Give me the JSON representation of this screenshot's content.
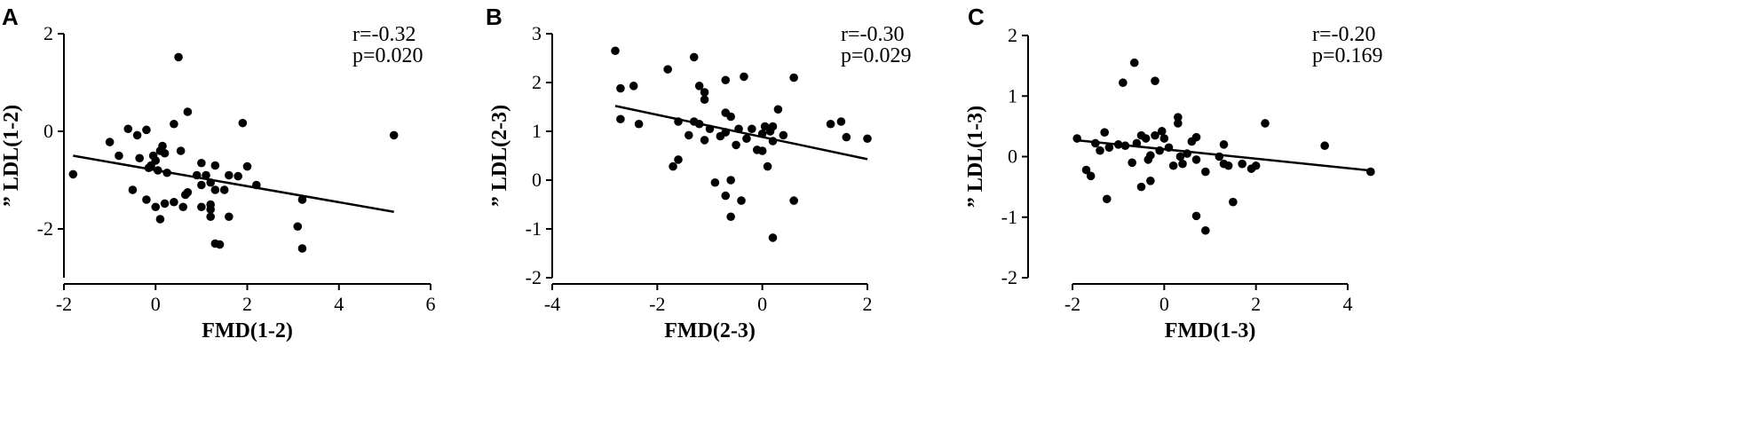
{
  "chart_data": [
    {
      "type": "scatter",
      "panel_label": "A",
      "xlabel": "FMD(1-2)",
      "ylabel": "” LDL(1-2)",
      "xlim": [
        -2,
        6
      ],
      "ylim": [
        -3,
        2
      ],
      "xticks": [
        -2,
        0,
        2,
        4,
        6
      ],
      "yticks": [
        -2,
        0,
        2
      ],
      "annotations": {
        "r": "r=-0.32",
        "p": "p=0.020"
      },
      "fit_line": {
        "x": [
          -1.8,
          5.2
        ],
        "y": [
          -0.5,
          -1.65
        ]
      },
      "points": [
        [
          -1.8,
          -0.88
        ],
        [
          -1.0,
          -0.22
        ],
        [
          -0.8,
          -0.5
        ],
        [
          -0.6,
          0.05
        ],
        [
          -0.4,
          -0.08
        ],
        [
          -0.35,
          -0.55
        ],
        [
          -0.2,
          0.03
        ],
        [
          -0.5,
          -1.2
        ],
        [
          -0.2,
          -1.4
        ],
        [
          -0.15,
          -0.75
        ],
        [
          -0.1,
          -0.7
        ],
        [
          -0.05,
          -0.5
        ],
        [
          0.0,
          -0.6
        ],
        [
          0.05,
          -0.8
        ],
        [
          0.1,
          -0.4
        ],
        [
          0.15,
          -0.3
        ],
        [
          0.2,
          -0.45
        ],
        [
          0.25,
          -0.85
        ],
        [
          0.0,
          -1.55
        ],
        [
          0.1,
          -1.8
        ],
        [
          0.2,
          -1.48
        ],
        [
          0.4,
          -1.45
        ],
        [
          0.4,
          0.15
        ],
        [
          0.5,
          1.52
        ],
        [
          0.55,
          -0.4
        ],
        [
          0.6,
          -1.55
        ],
        [
          0.65,
          -1.3
        ],
        [
          0.7,
          -1.25
        ],
        [
          0.7,
          0.4
        ],
        [
          0.9,
          -0.9
        ],
        [
          1.0,
          -0.65
        ],
        [
          1.0,
          -1.1
        ],
        [
          1.0,
          -1.55
        ],
        [
          1.1,
          -0.9
        ],
        [
          1.2,
          -1.05
        ],
        [
          1.2,
          -1.5
        ],
        [
          1.2,
          -1.6
        ],
        [
          1.2,
          -1.75
        ],
        [
          1.3,
          -0.7
        ],
        [
          1.3,
          -1.2
        ],
        [
          1.3,
          -2.3
        ],
        [
          1.4,
          -2.32
        ],
        [
          1.5,
          -1.2
        ],
        [
          1.6,
          -0.9
        ],
        [
          1.6,
          -1.75
        ],
        [
          1.8,
          -0.92
        ],
        [
          1.9,
          0.17
        ],
        [
          2.0,
          -0.72
        ],
        [
          2.2,
          -1.1
        ],
        [
          3.1,
          -1.95
        ],
        [
          3.2,
          -1.4
        ],
        [
          3.2,
          -2.4
        ],
        [
          5.2,
          -0.08
        ]
      ]
    },
    {
      "type": "scatter",
      "panel_label": "B",
      "xlabel": "FMD(2-3)",
      "ylabel": "” LDL(2-3)",
      "xlim": [
        -4,
        2
      ],
      "ylim": [
        -2,
        3
      ],
      "xticks": [
        -4,
        -2,
        0,
        2
      ],
      "yticks": [
        -2,
        -1,
        0,
        1,
        2,
        3
      ],
      "annotations": {
        "r": "r=-0.30",
        "p": "p=0.029"
      },
      "fit_line": {
        "x": [
          -2.8,
          2.0
        ],
        "y": [
          1.52,
          0.43
        ]
      },
      "points": [
        [
          -2.8,
          2.65
        ],
        [
          -2.7,
          1.88
        ],
        [
          -2.7,
          1.25
        ],
        [
          -2.45,
          1.93
        ],
        [
          -2.35,
          1.15
        ],
        [
          -1.8,
          2.27
        ],
        [
          -1.7,
          0.28
        ],
        [
          -1.6,
          0.42
        ],
        [
          -1.6,
          1.2
        ],
        [
          -1.4,
          0.92
        ],
        [
          -1.3,
          2.52
        ],
        [
          -1.3,
          1.2
        ],
        [
          -1.2,
          1.93
        ],
        [
          -1.2,
          1.15
        ],
        [
          -1.1,
          1.8
        ],
        [
          -1.1,
          1.65
        ],
        [
          -1.1,
          0.82
        ],
        [
          -1.0,
          1.05
        ],
        [
          -0.9,
          -0.05
        ],
        [
          -0.8,
          0.9
        ],
        [
          -0.7,
          2.05
        ],
        [
          -0.7,
          1.38
        ],
        [
          -0.7,
          0.98
        ],
        [
          -0.7,
          -0.32
        ],
        [
          -0.6,
          1.3
        ],
        [
          -0.6,
          0.0
        ],
        [
          -0.6,
          -0.75
        ],
        [
          -0.5,
          0.72
        ],
        [
          -0.45,
          1.05
        ],
        [
          -0.4,
          -0.42
        ],
        [
          -0.35,
          2.12
        ],
        [
          -0.3,
          0.85
        ],
        [
          -0.2,
          1.05
        ],
        [
          -0.1,
          0.62
        ],
        [
          0.0,
          0.95
        ],
        [
          0.0,
          0.6
        ],
        [
          0.05,
          1.1
        ],
        [
          0.1,
          0.28
        ],
        [
          0.15,
          1.0
        ],
        [
          0.2,
          0.8
        ],
        [
          0.2,
          1.1
        ],
        [
          0.2,
          -1.18
        ],
        [
          0.3,
          1.45
        ],
        [
          0.4,
          0.92
        ],
        [
          0.6,
          2.1
        ],
        [
          0.6,
          -0.42
        ],
        [
          1.3,
          1.15
        ],
        [
          1.5,
          1.2
        ],
        [
          1.6,
          0.88
        ],
        [
          2.0,
          0.85
        ]
      ]
    },
    {
      "type": "scatter",
      "panel_label": "C",
      "xlabel": "FMD(1-3)",
      "ylabel": "” LDL(1-3)",
      "xlim": [
        -3,
        5
      ],
      "ylim": [
        -2,
        2
      ],
      "xticks": [
        -2,
        0,
        2,
        4
      ],
      "yticks": [
        -2,
        -1,
        0,
        1,
        2
      ],
      "annotations": {
        "r": "r=-0.20",
        "p": "p=0.169"
      },
      "fit_line": {
        "x": [
          -1.9,
          4.5
        ],
        "y": [
          0.27,
          -0.23
        ]
      },
      "points": [
        [
          -1.9,
          0.3
        ],
        [
          -1.7,
          -0.22
        ],
        [
          -1.6,
          -0.32
        ],
        [
          -1.5,
          0.22
        ],
        [
          -1.4,
          0.1
        ],
        [
          -1.3,
          0.4
        ],
        [
          -1.25,
          -0.7
        ],
        [
          -1.2,
          0.15
        ],
        [
          -1.0,
          0.2
        ],
        [
          -0.9,
          1.22
        ],
        [
          -0.85,
          0.18
        ],
        [
          -0.7,
          -0.1
        ],
        [
          -0.65,
          1.55
        ],
        [
          -0.6,
          0.22
        ],
        [
          -0.5,
          0.35
        ],
        [
          -0.5,
          -0.5
        ],
        [
          -0.4,
          0.3
        ],
        [
          -0.35,
          -0.05
        ],
        [
          -0.3,
          -0.4
        ],
        [
          -0.3,
          0.02
        ],
        [
          -0.2,
          1.25
        ],
        [
          -0.2,
          0.35
        ],
        [
          -0.1,
          0.1
        ],
        [
          -0.05,
          0.42
        ],
        [
          0.0,
          0.3
        ],
        [
          0.1,
          0.15
        ],
        [
          0.2,
          -0.15
        ],
        [
          0.3,
          0.65
        ],
        [
          0.3,
          0.55
        ],
        [
          0.35,
          0.0
        ],
        [
          0.4,
          -0.12
        ],
        [
          0.5,
          0.05
        ],
        [
          0.6,
          0.25
        ],
        [
          0.7,
          0.32
        ],
        [
          0.7,
          -0.05
        ],
        [
          0.7,
          -0.98
        ],
        [
          0.9,
          -0.25
        ],
        [
          0.9,
          -1.22
        ],
        [
          1.2,
          0.0
        ],
        [
          1.3,
          0.2
        ],
        [
          1.3,
          -0.12
        ],
        [
          1.4,
          -0.15
        ],
        [
          1.5,
          -0.75
        ],
        [
          1.7,
          -0.12
        ],
        [
          1.9,
          -0.2
        ],
        [
          2.0,
          -0.15
        ],
        [
          2.2,
          0.55
        ],
        [
          3.5,
          0.18
        ],
        [
          4.5,
          -0.25
        ]
      ]
    }
  ]
}
